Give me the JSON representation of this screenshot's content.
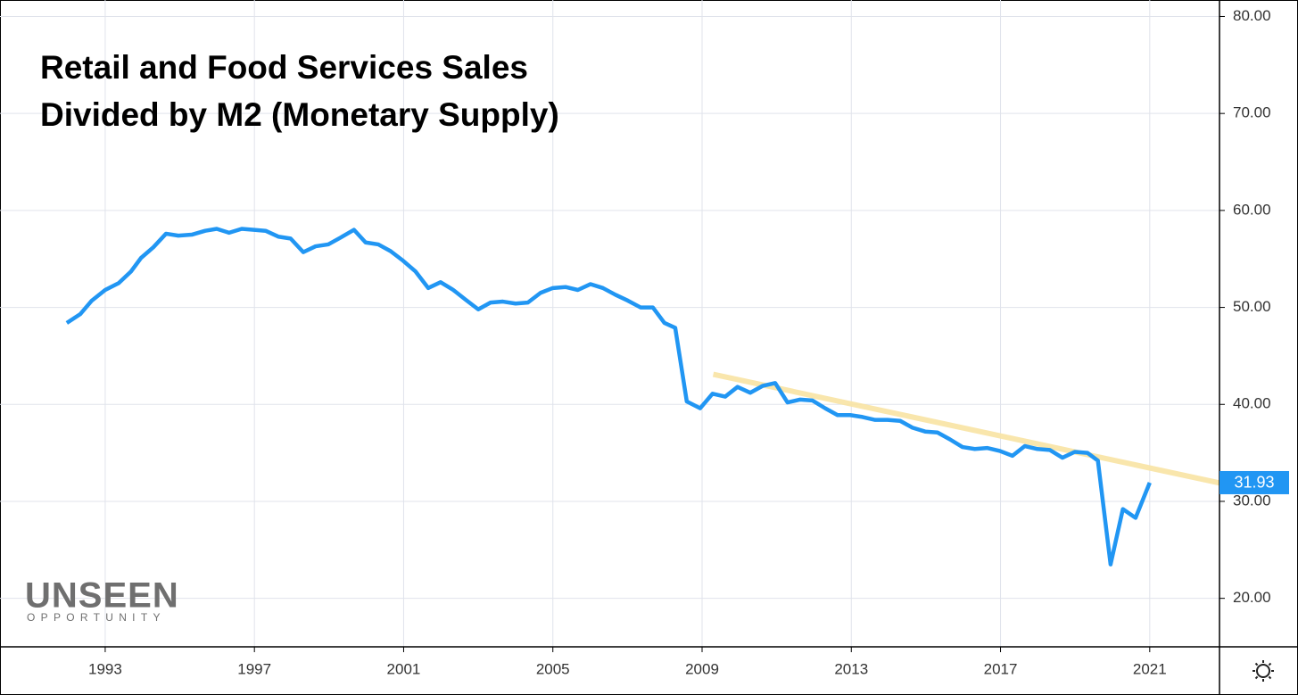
{
  "chart_data": {
    "type": "line",
    "title": [
      "Retail and Food Services Sales",
      "Divided by M2 (Monetary Supply)"
    ],
    "logo": {
      "main": "UNSEEN",
      "sub": "OPPORTUNITY"
    },
    "x": [
      1991.97,
      1992.33,
      1992.64,
      1993.0,
      1993.36,
      1993.69,
      1993.96,
      1994.29,
      1994.63,
      1994.96,
      1995.32,
      1995.68,
      1995.99,
      1996.32,
      1996.66,
      1996.99,
      1997.3,
      1997.64,
      1997.97,
      1998.31,
      1998.64,
      1998.98,
      1999.31,
      1999.67,
      1999.98,
      2000.32,
      2000.65,
      2000.99,
      2001.32,
      2001.66,
      2001.99,
      2002.33,
      2002.66,
      2003.0,
      2003.33,
      2003.66,
      2004.0,
      2004.33,
      2004.67,
      2005.0,
      2005.34,
      2005.67,
      2006.01,
      2006.34,
      2006.68,
      2007.01,
      2007.35,
      2007.68,
      2007.99,
      2008.28,
      2008.59,
      2008.95,
      2009.28,
      2009.62,
      2009.95,
      2010.29,
      2010.62,
      2010.96,
      2011.29,
      2011.63,
      2011.96,
      2012.3,
      2012.63,
      2012.97,
      2013.3,
      2013.64,
      2013.97,
      2014.31,
      2014.64,
      2014.98,
      2015.31,
      2015.64,
      2015.98,
      2016.31,
      2016.65,
      2016.98,
      2017.32,
      2017.65,
      2017.99,
      2018.32,
      2018.66,
      2018.99,
      2019.33,
      2019.61,
      2019.95,
      2020.28,
      2020.62,
      2021.0
    ],
    "series": [
      {
        "color": "#2196f3",
        "values": [
          48.4,
          49.3,
          50.7,
          51.8,
          52.5,
          53.7,
          55.1,
          56.2,
          57.6,
          57.4,
          57.5,
          57.9,
          58.1,
          57.7,
          58.1,
          58.0,
          57.9,
          57.3,
          57.1,
          55.7,
          56.3,
          56.5,
          57.2,
          58.0,
          56.7,
          56.5,
          55.8,
          54.8,
          53.7,
          52.0,
          52.6,
          51.8,
          50.8,
          49.8,
          50.5,
          50.6,
          50.4,
          50.5,
          51.5,
          52.0,
          52.1,
          51.8,
          52.4,
          52.0,
          51.3,
          50.7,
          50.0,
          50.0,
          48.4,
          47.9,
          40.3,
          39.6,
          41.1,
          40.8,
          41.8,
          41.2,
          41.9,
          42.2,
          40.2,
          40.5,
          40.4,
          39.6,
          38.9,
          38.9,
          38.7,
          38.4,
          38.4,
          38.3,
          37.6,
          37.2,
          37.1,
          36.4,
          35.6,
          35.4,
          35.5,
          35.2,
          34.7,
          35.7,
          35.4,
          35.3,
          34.5,
          35.1,
          35.0,
          34.2,
          23.5,
          29.2,
          28.3,
          31.93
        ]
      }
    ],
    "trend_line": {
      "x": [
        2009.3,
        2022.87
      ],
      "values": [
        43.1,
        31.9
      ],
      "color": "#f8e3a3"
    },
    "xlim": [
      1990.18,
      2022.87
    ],
    "ylim": [
      15.0,
      81.7
    ],
    "xticks": [
      1993,
      1997,
      2001,
      2005,
      2009,
      2013,
      2017,
      2021
    ],
    "yticks": [
      {
        "value": 20,
        "label": "20.00"
      },
      {
        "value": 30,
        "label": "30.00"
      },
      {
        "value": 40,
        "label": "40.00"
      },
      {
        "value": 50,
        "label": "50.00"
      },
      {
        "value": 60,
        "label": "60.00"
      },
      {
        "value": 70,
        "label": "70.00"
      },
      {
        "value": 80,
        "label": "80.00"
      }
    ],
    "grid": true
  }
}
